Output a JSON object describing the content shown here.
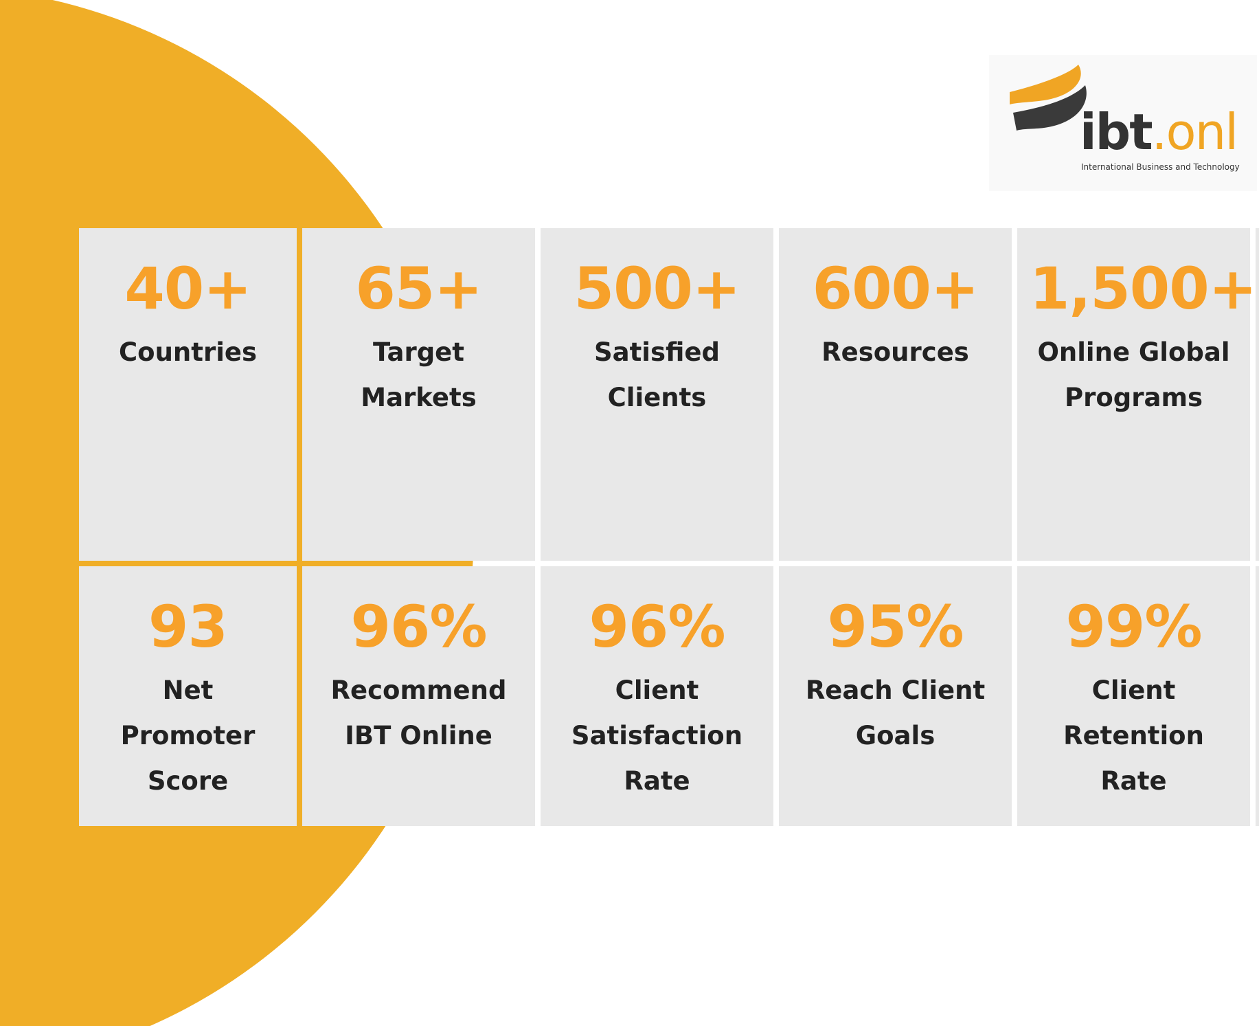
{
  "logo": {
    "name": "ibt",
    "suffix": ".onl",
    "tagline": "International Business and Technology"
  },
  "stats": [
    {
      "value": "40+",
      "label": "Countries"
    },
    {
      "value": "65+",
      "label": "Target Markets"
    },
    {
      "value": "500+",
      "label": "Satisfied Clients"
    },
    {
      "value": "600+",
      "label": "Resources"
    },
    {
      "value": "1,500+",
      "label": "Online Global Programs"
    },
    {
      "value": "93",
      "label": "Net Promoter Score"
    },
    {
      "value": "96%",
      "label": "Recommend IBT Online"
    },
    {
      "value": "96%",
      "label": "Client Satisfaction Rate"
    },
    {
      "value": "95%",
      "label": "Reach Client Goals"
    },
    {
      "value": "99%",
      "label": "Client Retention Rate"
    }
  ]
}
